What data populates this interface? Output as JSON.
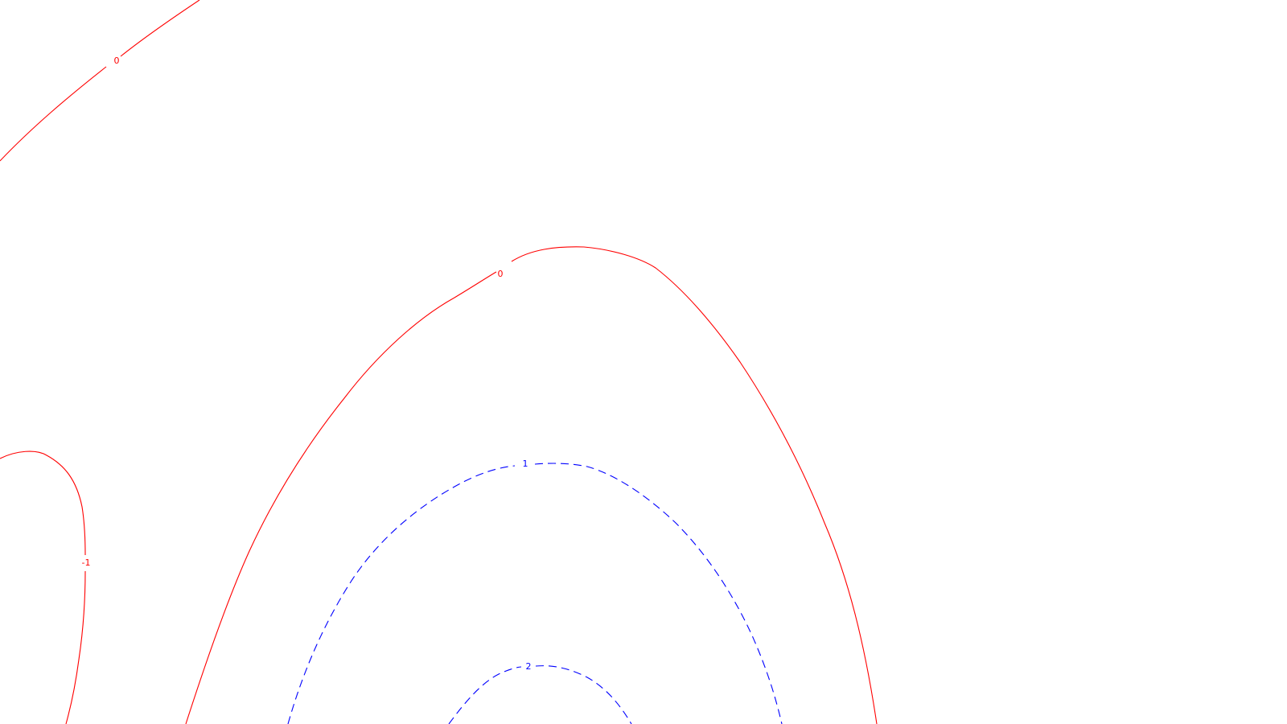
{
  "colors": {
    "background": "#ffffff",
    "red": "#ff0000",
    "blue": "#0000ff"
  },
  "contours": [
    {
      "id": "top-left-zero",
      "level": "0",
      "color": "red",
      "style": "solid"
    },
    {
      "id": "upper-arc-zero",
      "level": "0",
      "color": "red",
      "style": "solid"
    },
    {
      "id": "left-minus-one",
      "level": "-1",
      "color": "red",
      "style": "solid"
    },
    {
      "id": "blue-one",
      "level": "1",
      "color": "blue",
      "style": "dashed"
    },
    {
      "id": "blue-two",
      "level": "2",
      "color": "blue",
      "style": "dashed"
    }
  ]
}
